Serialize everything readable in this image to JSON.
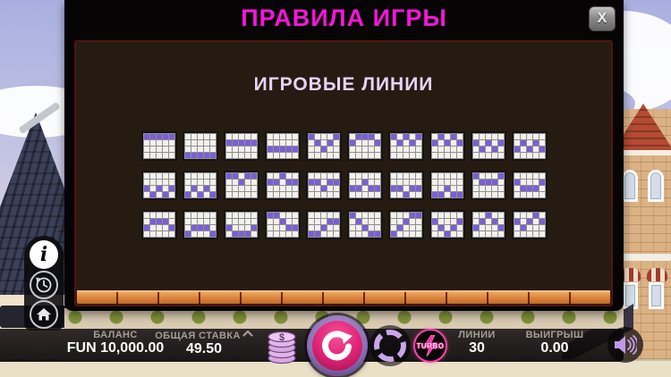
{
  "modal": {
    "title": "ПРАВИЛА ИГРЫ",
    "close_label": "X",
    "section_title": "ИГРОВЫЕ ЛИНИИ"
  },
  "chart_data": {
    "type": "heatmap",
    "title": "ИГРОВЫЕ ЛИНИИ",
    "note": "30 payline diagrams, each a 5-reel x 4-row grid; value = highlighted row index per reel (0=top)",
    "grid_rows": 4,
    "grid_cols": 5,
    "line_count": 30,
    "lines": [
      [
        0,
        0,
        0,
        0,
        0
      ],
      [
        3,
        3,
        3,
        3,
        3
      ],
      [
        1,
        1,
        1,
        1,
        1
      ],
      [
        2,
        2,
        2,
        2,
        2
      ],
      [
        0,
        1,
        2,
        1,
        0
      ],
      [
        1,
        0,
        0,
        0,
        1
      ],
      [
        0,
        1,
        0,
        1,
        0
      ],
      [
        1,
        0,
        1,
        0,
        1
      ],
      [
        1,
        2,
        1,
        2,
        1
      ],
      [
        2,
        1,
        2,
        1,
        2
      ],
      [
        2,
        3,
        2,
        3,
        2
      ],
      [
        3,
        2,
        3,
        2,
        3
      ],
      [
        0,
        0,
        1,
        0,
        0
      ],
      [
        1,
        1,
        0,
        1,
        1
      ],
      [
        1,
        1,
        2,
        1,
        1
      ],
      [
        2,
        2,
        1,
        2,
        2
      ],
      [
        2,
        2,
        3,
        2,
        2
      ],
      [
        3,
        3,
        2,
        3,
        3
      ],
      [
        0,
        1,
        1,
        1,
        0
      ],
      [
        1,
        2,
        2,
        2,
        1
      ],
      [
        2,
        1,
        1,
        1,
        2
      ],
      [
        3,
        2,
        2,
        2,
        3
      ],
      [
        2,
        3,
        3,
        3,
        2
      ],
      [
        0,
        0,
        1,
        2,
        2
      ],
      [
        3,
        3,
        2,
        1,
        1
      ],
      [
        0,
        1,
        2,
        3,
        3
      ],
      [
        3,
        2,
        1,
        0,
        0
      ],
      [
        1,
        2,
        3,
        2,
        1
      ],
      [
        2,
        1,
        0,
        1,
        2
      ],
      [
        1,
        2,
        1,
        0,
        1
      ]
    ]
  },
  "sidebar": {
    "info": "info",
    "history": "history",
    "home": "home",
    "more_label": "•••"
  },
  "controls": {
    "balance": {
      "label": "БАЛАНС",
      "value": "FUN 10,000.00"
    },
    "total_bet": {
      "label": "ОБЩАЯ СТАВКА",
      "value": "49.50"
    },
    "lines": {
      "label": "ЛИНИИ",
      "value": "30"
    },
    "win": {
      "label": "ВЫИГРЫШ",
      "value": "0.00"
    },
    "turbo_label": "TURBO",
    "coins_symbol": "$"
  },
  "colors": {
    "title_magenta": "#f316d8",
    "heading_lavender": "#e5d4f6",
    "panel_brown": "#261b11",
    "payline_purple": "#7a5ed8",
    "brick_orange": "#d8813a",
    "spin_magenta": "#dd2374",
    "turbo_pink": "#ff43ae",
    "icon_lavender": "#bf97e8"
  }
}
